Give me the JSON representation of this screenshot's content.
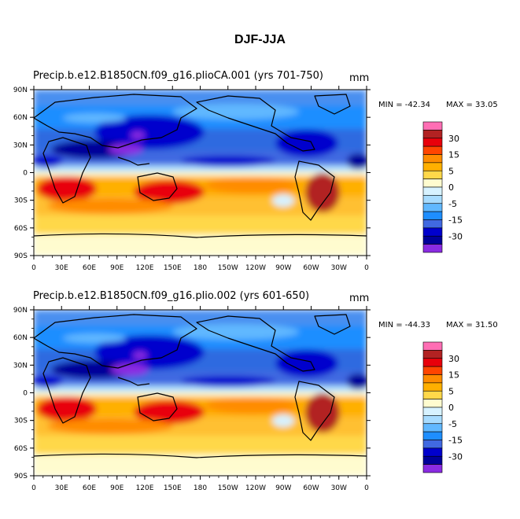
{
  "title": "DJF-JJA",
  "chart_data": [
    {
      "type": "heatmap",
      "title_left": "Precip.b.e12.B1850CN.f09_g16.plioCA.001 (yrs 701-750)",
      "units": "mm",
      "min_label": "MIN = -42.34",
      "max_label": "MAX =  33.05",
      "xlim": [
        0,
        360
      ],
      "ylim": [
        -90,
        90
      ],
      "x_ticks": [
        "0",
        "30E",
        "60E",
        "90E",
        "120E",
        "150E",
        "180",
        "150W",
        "120W",
        "90W",
        "60W",
        "30W",
        "0"
      ],
      "y_ticks": [
        "90N",
        "60N",
        "30N",
        "0",
        "30S",
        "60S",
        "90S"
      ]
    },
    {
      "type": "heatmap",
      "title_left": "Precip.b.e12.B1850CN.f09_g16.plio.002 (yrs 601-650)",
      "units": "mm",
      "min_label": "MIN = -44.33",
      "max_label": "MAX =  31.50",
      "xlim": [
        0,
        360
      ],
      "ylim": [
        -90,
        90
      ],
      "x_ticks": [
        "0",
        "30E",
        "60E",
        "90E",
        "120E",
        "150E",
        "180",
        "150W",
        "120W",
        "90W",
        "60W",
        "30W",
        "0"
      ],
      "y_ticks": [
        "90N",
        "60N",
        "30N",
        "0",
        "30S",
        "60S",
        "90S"
      ]
    }
  ],
  "colorbar": {
    "colors": [
      "#ff6eb4",
      "#b22222",
      "#e8000b",
      "#ff4500",
      "#ff8c00",
      "#ffb000",
      "#ffd84a",
      "#fffccf",
      "#d7f2ff",
      "#a8dcff",
      "#61b8ff",
      "#1e8eff",
      "#4169e1",
      "#0000cd",
      "#00009a",
      "#8a2be2"
    ],
    "labels": [
      "30",
      "15",
      "5",
      "0",
      "-5",
      "-15",
      "-30"
    ]
  }
}
